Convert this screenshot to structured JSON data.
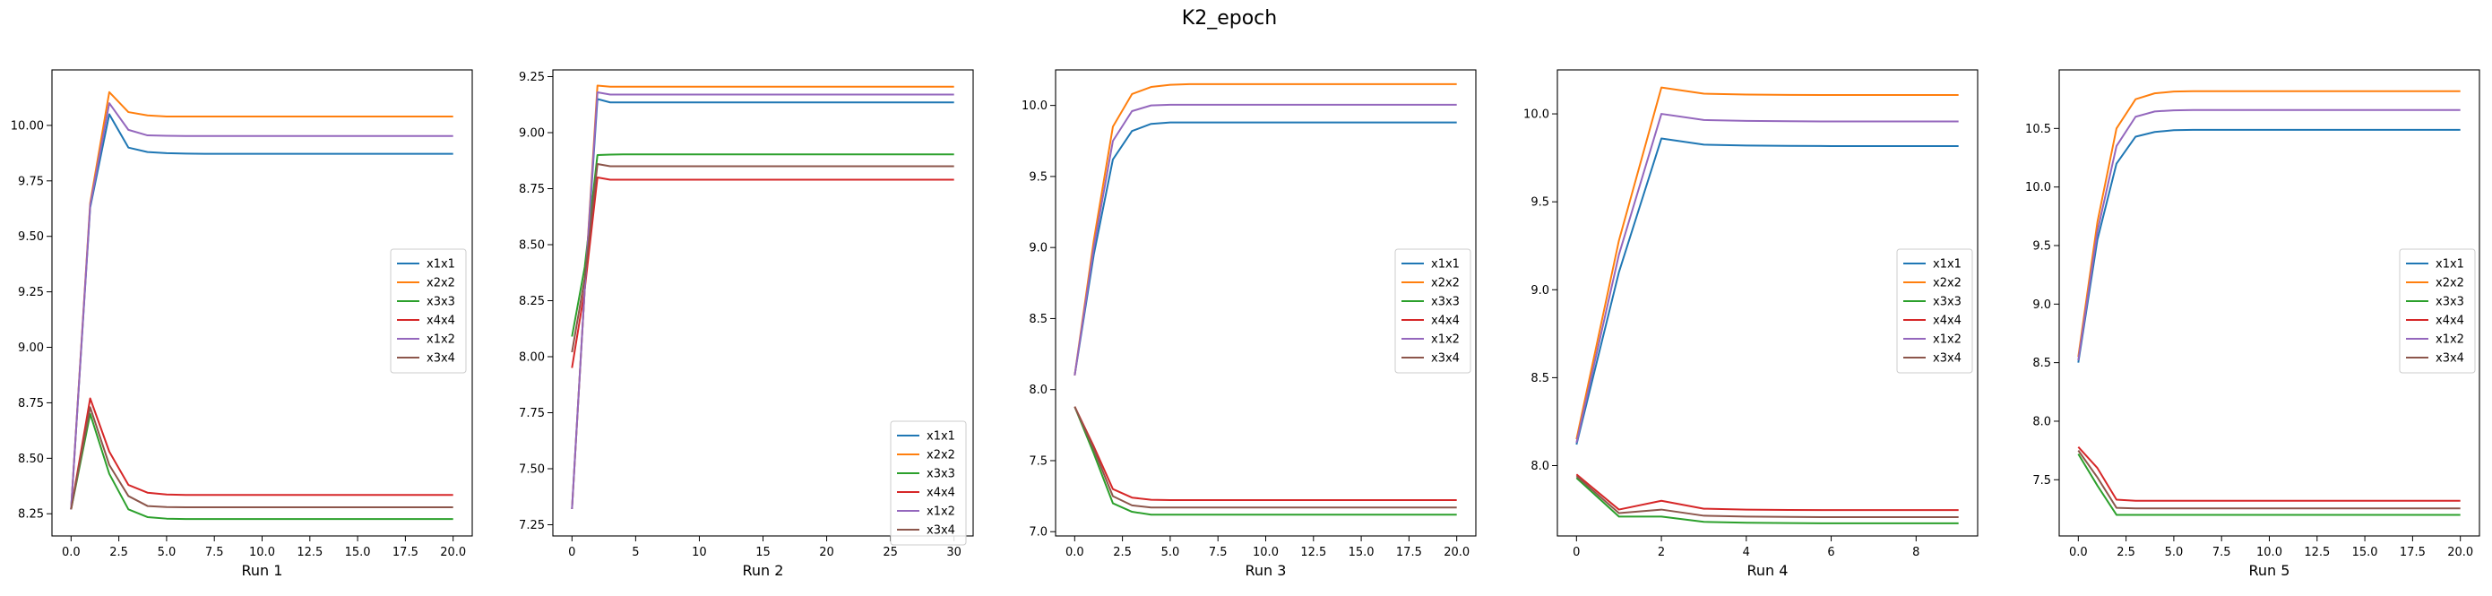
{
  "figure": {
    "title": "K2_epoch"
  },
  "colors": {
    "x1x1": "#1f77b4",
    "x2x2": "#ff7f0e",
    "x3x3": "#2ca02c",
    "x4x4": "#d62728",
    "x1x2": "#9467bd",
    "x3x4": "#8c564b"
  },
  "chart_data": [
    {
      "type": "line",
      "title": "",
      "xlabel": "Run 1",
      "ylabel": "",
      "xlim": [
        -1,
        21
      ],
      "ylim": [
        8.15,
        10.25
      ],
      "xticks": [
        0,
        2.5,
        5,
        7.5,
        10,
        12.5,
        15,
        17.5,
        20
      ],
      "xtick_labels": [
        "0.0",
        "2.5",
        "5.0",
        "7.5",
        "10.0",
        "12.5",
        "15.0",
        "17.5",
        "20.0"
      ],
      "yticks": [
        8.25,
        8.5,
        8.75,
        9.0,
        9.25,
        9.5,
        9.75,
        10.0
      ],
      "ytick_labels": [
        "8.25",
        "8.50",
        "8.75",
        "9.00",
        "9.25",
        "9.50",
        "9.75",
        "10.00"
      ],
      "legend_position": "center-right",
      "x": [
        0,
        1,
        2,
        3,
        4,
        5,
        6,
        7,
        8,
        9,
        10,
        11,
        12,
        13,
        14,
        15,
        16,
        17,
        18,
        19,
        20
      ],
      "series": [
        {
          "name": "x1x1",
          "values": [
            8.27,
            9.63,
            10.05,
            9.9,
            9.88,
            9.875,
            9.873,
            9.872,
            9.872,
            9.872,
            9.872,
            9.872,
            9.872,
            9.872,
            9.872,
            9.872,
            9.872,
            9.872,
            9.872,
            9.872,
            9.872
          ]
        },
        {
          "name": "x2x2",
          "values": [
            8.27,
            9.65,
            10.15,
            10.06,
            10.045,
            10.04,
            10.04,
            10.04,
            10.04,
            10.04,
            10.04,
            10.04,
            10.04,
            10.04,
            10.04,
            10.04,
            10.04,
            10.04,
            10.04,
            10.04,
            10.04
          ]
        },
        {
          "name": "x3x3",
          "values": [
            8.27,
            8.7,
            8.43,
            8.27,
            8.235,
            8.228,
            8.226,
            8.226,
            8.226,
            8.226,
            8.226,
            8.226,
            8.226,
            8.226,
            8.226,
            8.226,
            8.226,
            8.226,
            8.226,
            8.226,
            8.226
          ]
        },
        {
          "name": "x4x4",
          "values": [
            8.27,
            8.77,
            8.53,
            8.38,
            8.345,
            8.337,
            8.335,
            8.335,
            8.335,
            8.335,
            8.335,
            8.335,
            8.335,
            8.335,
            8.335,
            8.335,
            8.335,
            8.335,
            8.335,
            8.335,
            8.335
          ]
        },
        {
          "name": "x1x2",
          "values": [
            8.27,
            9.64,
            10.1,
            9.98,
            9.955,
            9.953,
            9.952,
            9.952,
            9.952,
            9.952,
            9.952,
            9.952,
            9.952,
            9.952,
            9.952,
            9.952,
            9.952,
            9.952,
            9.952,
            9.952,
            9.952
          ]
        },
        {
          "name": "x3x4",
          "values": [
            8.27,
            8.73,
            8.47,
            8.33,
            8.285,
            8.28,
            8.279,
            8.279,
            8.279,
            8.279,
            8.279,
            8.279,
            8.279,
            8.279,
            8.279,
            8.279,
            8.279,
            8.279,
            8.279,
            8.279,
            8.279
          ]
        }
      ]
    },
    {
      "type": "line",
      "title": "",
      "xlabel": "Run 2",
      "ylabel": "",
      "xlim": [
        -1.5,
        31.5
      ],
      "ylim": [
        7.2,
        9.28
      ],
      "xticks": [
        0,
        5,
        10,
        15,
        20,
        25,
        30
      ],
      "xtick_labels": [
        "0",
        "5",
        "10",
        "15",
        "20",
        "25",
        "30"
      ],
      "yticks": [
        7.25,
        7.5,
        7.75,
        8.0,
        8.25,
        8.5,
        8.75,
        9.0,
        9.25
      ],
      "ytick_labels": [
        "7.25",
        "7.50",
        "7.75",
        "8.00",
        "8.25",
        "8.50",
        "8.75",
        "9.00",
        "9.25"
      ],
      "legend_position": "lower-right",
      "x": [
        0,
        1,
        2,
        3,
        4,
        5,
        6,
        7,
        8,
        9,
        10,
        11,
        12,
        13,
        14,
        15,
        16,
        17,
        18,
        19,
        20,
        21,
        22,
        23,
        24,
        25,
        26,
        27,
        28,
        29,
        30
      ],
      "series": [
        {
          "name": "x1x1",
          "values": [
            7.32,
            8.3,
            9.15,
            9.135,
            9.135,
            9.135,
            9.135,
            9.135,
            9.135,
            9.135,
            9.135,
            9.135,
            9.135,
            9.135,
            9.135,
            9.135,
            9.135,
            9.135,
            9.135,
            9.135,
            9.135,
            9.135,
            9.135,
            9.135,
            9.135,
            9.135,
            9.135,
            9.135,
            9.135,
            9.135,
            9.135
          ]
        },
        {
          "name": "x2x2",
          "values": [
            7.32,
            8.3,
            9.21,
            9.205,
            9.205,
            9.205,
            9.205,
            9.205,
            9.205,
            9.205,
            9.205,
            9.205,
            9.205,
            9.205,
            9.205,
            9.205,
            9.205,
            9.205,
            9.205,
            9.205,
            9.205,
            9.205,
            9.205,
            9.205,
            9.205,
            9.205,
            9.205,
            9.205,
            9.205,
            9.205,
            9.205
          ]
        },
        {
          "name": "x3x3",
          "values": [
            8.09,
            8.4,
            8.9,
            8.902,
            8.903,
            8.903,
            8.903,
            8.903,
            8.903,
            8.903,
            8.903,
            8.903,
            8.903,
            8.903,
            8.903,
            8.903,
            8.903,
            8.903,
            8.903,
            8.903,
            8.903,
            8.903,
            8.903,
            8.903,
            8.903,
            8.903,
            8.903,
            8.903,
            8.903,
            8.903,
            8.903
          ]
        },
        {
          "name": "x4x4",
          "values": [
            7.95,
            8.3,
            8.8,
            8.79,
            8.79,
            8.79,
            8.79,
            8.79,
            8.79,
            8.79,
            8.79,
            8.79,
            8.79,
            8.79,
            8.79,
            8.79,
            8.79,
            8.79,
            8.79,
            8.79,
            8.79,
            8.79,
            8.79,
            8.79,
            8.79,
            8.79,
            8.79,
            8.79,
            8.79,
            8.79,
            8.79
          ]
        },
        {
          "name": "x1x2",
          "values": [
            7.32,
            8.3,
            9.18,
            9.17,
            9.17,
            9.17,
            9.17,
            9.17,
            9.17,
            9.17,
            9.17,
            9.17,
            9.17,
            9.17,
            9.17,
            9.17,
            9.17,
            9.17,
            9.17,
            9.17,
            9.17,
            9.17,
            9.17,
            9.17,
            9.17,
            9.17,
            9.17,
            9.17,
            9.17,
            9.17,
            9.17
          ]
        },
        {
          "name": "x3x4",
          "values": [
            8.02,
            8.35,
            8.86,
            8.85,
            8.85,
            8.85,
            8.85,
            8.85,
            8.85,
            8.85,
            8.85,
            8.85,
            8.85,
            8.85,
            8.85,
            8.85,
            8.85,
            8.85,
            8.85,
            8.85,
            8.85,
            8.85,
            8.85,
            8.85,
            8.85,
            8.85,
            8.85,
            8.85,
            8.85,
            8.85,
            8.85
          ]
        }
      ]
    },
    {
      "type": "line",
      "title": "",
      "xlabel": "Run 3",
      "ylabel": "",
      "xlim": [
        -1,
        21
      ],
      "ylim": [
        6.97,
        10.25
      ],
      "xticks": [
        0,
        2.5,
        5,
        7.5,
        10,
        12.5,
        15,
        17.5,
        20
      ],
      "xtick_labels": [
        "0.0",
        "2.5",
        "5.0",
        "7.5",
        "10.0",
        "12.5",
        "15.0",
        "17.5",
        "20.0"
      ],
      "yticks": [
        7.0,
        7.5,
        8.0,
        8.5,
        9.0,
        9.5,
        10.0
      ],
      "ytick_labels": [
        "7.0",
        "7.5",
        "8.0",
        "8.5",
        "9.0",
        "9.5",
        "10.0"
      ],
      "legend_position": "center-right",
      "x": [
        0,
        1,
        2,
        3,
        4,
        5,
        6,
        7,
        8,
        9,
        10,
        11,
        12,
        13,
        14,
        15,
        16,
        17,
        18,
        19,
        20
      ],
      "series": [
        {
          "name": "x1x1",
          "values": [
            8.1,
            8.95,
            9.62,
            9.82,
            9.87,
            9.88,
            9.88,
            9.88,
            9.88,
            9.88,
            9.88,
            9.88,
            9.88,
            9.88,
            9.88,
            9.88,
            9.88,
            9.88,
            9.88,
            9.88,
            9.88
          ]
        },
        {
          "name": "x2x2",
          "values": [
            8.1,
            9.05,
            9.85,
            10.08,
            10.13,
            10.145,
            10.15,
            10.15,
            10.15,
            10.15,
            10.15,
            10.15,
            10.15,
            10.15,
            10.15,
            10.15,
            10.15,
            10.15,
            10.15,
            10.15,
            10.15
          ]
        },
        {
          "name": "x3x3",
          "values": [
            7.88,
            7.55,
            7.2,
            7.14,
            7.12,
            7.12,
            7.12,
            7.12,
            7.12,
            7.12,
            7.12,
            7.12,
            7.12,
            7.12,
            7.12,
            7.12,
            7.12,
            7.12,
            7.12,
            7.12,
            7.12
          ]
        },
        {
          "name": "x4x4",
          "values": [
            7.88,
            7.6,
            7.3,
            7.24,
            7.225,
            7.222,
            7.222,
            7.222,
            7.222,
            7.222,
            7.222,
            7.222,
            7.222,
            7.222,
            7.222,
            7.222,
            7.222,
            7.222,
            7.222,
            7.222,
            7.222
          ]
        },
        {
          "name": "x1x2",
          "values": [
            8.1,
            9.0,
            9.75,
            9.96,
            10.0,
            10.005,
            10.005,
            10.005,
            10.005,
            10.005,
            10.005,
            10.005,
            10.005,
            10.005,
            10.005,
            10.005,
            10.005,
            10.005,
            10.005,
            10.005,
            10.005
          ]
        },
        {
          "name": "x3x4",
          "values": [
            7.88,
            7.58,
            7.25,
            7.185,
            7.17,
            7.17,
            7.17,
            7.17,
            7.17,
            7.17,
            7.17,
            7.17,
            7.17,
            7.17,
            7.17,
            7.17,
            7.17,
            7.17,
            7.17,
            7.17,
            7.17
          ]
        }
      ]
    },
    {
      "type": "line",
      "title": "",
      "xlabel": "Run 4",
      "ylabel": "",
      "xlim": [
        -0.45,
        9.45
      ],
      "ylim": [
        7.6,
        10.25
      ],
      "xticks": [
        0,
        2,
        4,
        6,
        8
      ],
      "xtick_labels": [
        "0",
        "2",
        "4",
        "6",
        "8"
      ],
      "yticks": [
        8.0,
        8.5,
        9.0,
        9.5,
        10.0
      ],
      "ytick_labels": [
        "8.0",
        "8.5",
        "9.0",
        "9.5",
        "10.0"
      ],
      "legend_position": "center-right",
      "x": [
        0,
        1,
        2,
        3,
        4,
        5,
        6,
        7,
        8,
        9
      ],
      "series": [
        {
          "name": "x1x1",
          "values": [
            8.12,
            9.1,
            9.86,
            9.825,
            9.82,
            9.818,
            9.817,
            9.817,
            9.817,
            9.817
          ]
        },
        {
          "name": "x2x2",
          "values": [
            8.15,
            9.28,
            10.15,
            10.115,
            10.11,
            10.108,
            10.107,
            10.107,
            10.107,
            10.107
          ]
        },
        {
          "name": "x3x3",
          "values": [
            7.93,
            7.71,
            7.71,
            7.68,
            7.675,
            7.673,
            7.672,
            7.672,
            7.672,
            7.672
          ]
        },
        {
          "name": "x4x4",
          "values": [
            7.95,
            7.75,
            7.8,
            7.755,
            7.75,
            7.748,
            7.747,
            7.747,
            7.747,
            7.747
          ]
        },
        {
          "name": "x1x2",
          "values": [
            8.13,
            9.2,
            10.0,
            9.965,
            9.96,
            9.958,
            9.957,
            9.957,
            9.957,
            9.957
          ]
        },
        {
          "name": "x3x4",
          "values": [
            7.94,
            7.73,
            7.75,
            7.715,
            7.71,
            7.708,
            7.707,
            7.707,
            7.707,
            7.707
          ]
        }
      ]
    },
    {
      "type": "line",
      "title": "",
      "xlabel": "Run 5",
      "ylabel": "",
      "xlim": [
        -1,
        21
      ],
      "ylim": [
        7.02,
        11.0
      ],
      "xticks": [
        0,
        2.5,
        5,
        7.5,
        10,
        12.5,
        15,
        17.5,
        20
      ],
      "xtick_labels": [
        "0.0",
        "2.5",
        "5.0",
        "7.5",
        "10.0",
        "12.5",
        "15.0",
        "17.5",
        "20.0"
      ],
      "yticks": [
        7.5,
        8.0,
        8.5,
        9.0,
        9.5,
        10.0,
        10.5
      ],
      "ytick_labels": [
        "7.5",
        "8.0",
        "8.5",
        "9.0",
        "9.5",
        "10.0",
        "10.5"
      ],
      "legend_position": "center-right",
      "x": [
        0,
        1,
        2,
        3,
        4,
        5,
        6,
        7,
        8,
        9,
        10,
        11,
        12,
        13,
        14,
        15,
        16,
        17,
        18,
        19,
        20
      ],
      "series": [
        {
          "name": "x1x1",
          "values": [
            8.5,
            9.55,
            10.2,
            10.43,
            10.47,
            10.485,
            10.488,
            10.488,
            10.488,
            10.488,
            10.488,
            10.488,
            10.488,
            10.488,
            10.488,
            10.488,
            10.488,
            10.488,
            10.488,
            10.488,
            10.488
          ]
        },
        {
          "name": "x2x2",
          "values": [
            8.55,
            9.7,
            10.5,
            10.75,
            10.8,
            10.815,
            10.818,
            10.818,
            10.818,
            10.818,
            10.818,
            10.818,
            10.818,
            10.818,
            10.818,
            10.818,
            10.818,
            10.818,
            10.818,
            10.818,
            10.818
          ]
        },
        {
          "name": "x3x3",
          "values": [
            7.72,
            7.45,
            7.2,
            7.2,
            7.2,
            7.2,
            7.2,
            7.2,
            7.2,
            7.2,
            7.2,
            7.2,
            7.2,
            7.2,
            7.2,
            7.2,
            7.2,
            7.2,
            7.2,
            7.2,
            7.2
          ]
        },
        {
          "name": "x4x4",
          "values": [
            7.78,
            7.6,
            7.33,
            7.32,
            7.32,
            7.32,
            7.32,
            7.32,
            7.32,
            7.32,
            7.32,
            7.32,
            7.32,
            7.32,
            7.32,
            7.32,
            7.32,
            7.32,
            7.32,
            7.32,
            7.32
          ]
        },
        {
          "name": "x1x2",
          "values": [
            8.52,
            9.62,
            10.35,
            10.6,
            10.645,
            10.655,
            10.657,
            10.657,
            10.657,
            10.657,
            10.657,
            10.657,
            10.657,
            10.657,
            10.657,
            10.657,
            10.657,
            10.657,
            10.657,
            10.657,
            10.657
          ]
        },
        {
          "name": "x3x4",
          "values": [
            7.75,
            7.52,
            7.26,
            7.255,
            7.255,
            7.255,
            7.255,
            7.255,
            7.255,
            7.255,
            7.255,
            7.255,
            7.255,
            7.255,
            7.255,
            7.255,
            7.255,
            7.255,
            7.255,
            7.255,
            7.255
          ]
        }
      ]
    }
  ]
}
